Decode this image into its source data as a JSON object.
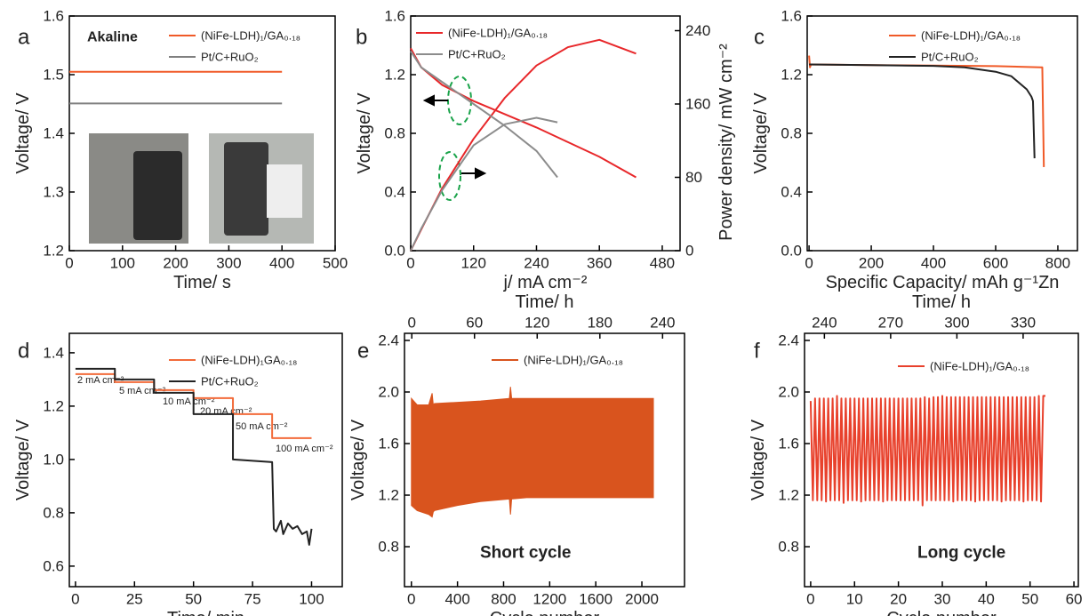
{
  "chart_data": [
    {
      "type": "line",
      "panel_label": "a",
      "xlabel": "Time/ s",
      "ylabel": "Voltage/ V",
      "xlim": [
        0,
        500
      ],
      "xticks": [
        0,
        100,
        200,
        300,
        400,
        500
      ],
      "ylim": [
        1.2,
        1.6
      ],
      "yticks": [
        1.2,
        1.3,
        1.4,
        1.5,
        1.6
      ],
      "annotations": [
        "Akaline"
      ],
      "series": [
        {
          "name": "(NiFe-LDH)₁/GA₀.₁₈",
          "color": "#f05a28",
          "x": [
            0,
            400
          ],
          "values": [
            1.505,
            1.505
          ]
        },
        {
          "name": "Pt/C+RuO₂",
          "color": "#808080",
          "x": [
            0,
            400
          ],
          "values": [
            1.451,
            1.451
          ]
        }
      ]
    },
    {
      "type": "dual",
      "panel_label": "b",
      "xlabel": "j/ mA cm⁻²",
      "ylabel": "Voltage/ V",
      "y2label": "Power density/ mW cm⁻²",
      "xlim": [
        0,
        514
      ],
      "xticks": [
        0,
        120,
        240,
        360,
        480
      ],
      "ylim": [
        0,
        1.6
      ],
      "yticks": [
        {
          "value": 0,
          "label": "0.0"
        },
        0.4,
        0.8,
        1.2,
        1.6
      ],
      "y2lim": [
        0,
        256
      ],
      "y2ticks": [
        0,
        80,
        160,
        240
      ],
      "series": [
        {
          "name": "(NiFe-LDH)₁/GA₀.₁₈",
          "color": "#e8272a",
          "x": [
            0,
            20,
            60,
            120,
            180,
            240,
            300,
            360,
            430
          ],
          "values": [
            1.38,
            1.25,
            1.13,
            1.02,
            0.93,
            0.84,
            0.74,
            0.64,
            0.5
          ],
          "y2_values": [
            0,
            23,
            68,
            122,
            167,
            202,
            222,
            230,
            215
          ]
        },
        {
          "name": "Pt/C+RuO₂",
          "color": "#8c8c8c",
          "x": [
            0,
            20,
            60,
            120,
            180,
            240,
            280
          ],
          "values": [
            1.36,
            1.25,
            1.15,
            1.0,
            0.85,
            0.68,
            0.5
          ],
          "y2_values": [
            0,
            24,
            66,
            115,
            138,
            145,
            140
          ]
        }
      ]
    },
    {
      "type": "line",
      "panel_label": "c",
      "xlabel": "Specific Capacity/ mAh g⁻¹Zn",
      "ylabel": "Voltage/ V",
      "xlim": [
        -6,
        863
      ],
      "xticks": [
        0,
        200,
        400,
        600,
        800
      ],
      "ylim": [
        0,
        1.6
      ],
      "yticks": [
        {
          "value": 0,
          "label": "0.0"
        },
        0.4,
        0.8,
        1.2,
        1.6
      ],
      "series": [
        {
          "name": "(NiFe-LDH)₁/GA₀.₁₈",
          "color": "#f05a28",
          "x": [
            0,
            3,
            6,
            200,
            400,
            600,
            745,
            750,
            755
          ],
          "values": [
            1.33,
            1.25,
            1.27,
            1.265,
            1.262,
            1.258,
            1.25,
            1.25,
            0.57
          ]
        },
        {
          "name": "Pt/C+RuO₂",
          "color": "#222222",
          "x": [
            0,
            200,
            400,
            500,
            600,
            650,
            700,
            715,
            720,
            725
          ],
          "values": [
            1.27,
            1.265,
            1.26,
            1.25,
            1.22,
            1.19,
            1.1,
            1.05,
            1.02,
            0.63
          ]
        }
      ]
    },
    {
      "type": "line",
      "panel_label": "d",
      "xlabel": "Time/ min",
      "ylabel": "Voltage/ V",
      "xlim": [
        -2.6,
        113
      ],
      "xticks": [
        0,
        25,
        50,
        75,
        100
      ],
      "ylim": [
        0.523,
        1.473
      ],
      "yticks": [
        0.6,
        0.8,
        {
          "value": 1,
          "label": "1.0"
        },
        1.2,
        1.4
      ],
      "annotations": [
        "2 mA cm⁻²",
        "5 mA cm⁻²",
        "10 mA cm⁻²",
        "20 mA cm⁻²",
        "50 mA cm⁻²",
        "100 mA cm⁻²"
      ],
      "series": [
        {
          "name": "(NiFe-LDH)₁GA₀.₁₈",
          "color": "#f26b3a",
          "x": [
            0,
            16.7,
            16.7,
            33.3,
            33.3,
            50,
            50,
            66.7,
            66.7,
            83.3,
            83.3,
            100
          ],
          "values": [
            1.32,
            1.32,
            1.29,
            1.29,
            1.26,
            1.26,
            1.23,
            1.23,
            1.17,
            1.17,
            1.08,
            1.08
          ]
        },
        {
          "name": "Pt/C+RuO₂",
          "color": "#222222",
          "x": [
            0,
            16.7,
            16.7,
            33.3,
            33.3,
            50,
            50,
            66.7,
            66.7,
            83.3,
            84,
            85,
            87,
            88,
            90,
            92,
            94,
            96,
            98,
            99,
            100
          ],
          "values": [
            1.34,
            1.34,
            1.3,
            1.3,
            1.25,
            1.25,
            1.17,
            1.17,
            1.0,
            0.99,
            0.74,
            0.73,
            0.77,
            0.72,
            0.76,
            0.74,
            0.75,
            0.72,
            0.73,
            0.68,
            0.74
          ]
        }
      ]
    },
    {
      "type": "band",
      "panel_label": "e",
      "xlabel": "Cycle number",
      "ylabel": "Voltage/ V",
      "x2label": "Time/ h",
      "xlim": [
        -60,
        2370
      ],
      "xticks": [
        0,
        400,
        800,
        1200,
        1600,
        2000
      ],
      "x2lim": [
        -7,
        261
      ],
      "x2ticks": [
        0,
        60,
        120,
        180,
        240
      ],
      "ylim": [
        0.49,
        2.455
      ],
      "yticks": [
        0.8,
        1.2,
        1.6,
        {
          "value": 2,
          "label": "2.0"
        },
        2.4
      ],
      "annotations": [
        "Short cycle"
      ],
      "series": [
        {
          "name": "(NiFe-LDH)₁/GA₀.₁₈",
          "color": "#d9541e",
          "x": [
            0,
            50,
            150,
            180,
            190,
            200,
            400,
            600,
            850,
            860,
            870,
            1000,
            1400,
            1800,
            2100
          ],
          "values": [
            1.95,
            1.9,
            1.9,
            1.99,
            1.9,
            1.91,
            1.92,
            1.93,
            1.95,
            2.04,
            1.95,
            1.95,
            1.95,
            1.95,
            1.95
          ],
          "lower": [
            1.12,
            1.08,
            1.05,
            1.03,
            1.07,
            1.08,
            1.12,
            1.15,
            1.17,
            1.05,
            1.17,
            1.18,
            1.18,
            1.18,
            1.18
          ]
        }
      ]
    },
    {
      "type": "line",
      "panel_label": "f",
      "xlabel": "Cycle number",
      "ylabel": "Voltage/ V",
      "x2label": "Time/ h",
      "xlim": [
        -1.4,
        61
      ],
      "xticks": [
        0,
        10,
        20,
        30,
        40,
        50,
        60
      ],
      "x2lim": [
        231,
        355
      ],
      "x2ticks": [
        240,
        270,
        300,
        330
      ],
      "ylim": [
        0.49,
        2.455
      ],
      "yticks": [
        0.8,
        1.2,
        1.6,
        {
          "value": 2,
          "label": "2.0"
        },
        2.4
      ],
      "annotations": [
        "Long cycle"
      ],
      "series": [
        {
          "name": "(NiFe-LDH)₁/GA₀.₁₈",
          "color": "#e8412c",
          "x": [
            0,
            0.5,
            1,
            1.5,
            2,
            2.5,
            3,
            3.5,
            4,
            4.5,
            5,
            5.5,
            6,
            6.5,
            7,
            7.5,
            8,
            8.5,
            9,
            9.5,
            10,
            10.5,
            11,
            11.5,
            12,
            12.5,
            13,
            13.5,
            14,
            14.5,
            15,
            15.5,
            16,
            16.5,
            17,
            17.5,
            18,
            18.5,
            19,
            19.5,
            20,
            20.5,
            21,
            21.5,
            22,
            22.5,
            23,
            23.5,
            24,
            24.5,
            25,
            25.5,
            26,
            26.5,
            27,
            27.5,
            28,
            28.5,
            29,
            29.5,
            30,
            30.5,
            31,
            31.5,
            32,
            32.5,
            33,
            33.5,
            34,
            34.5,
            35,
            35.5,
            36,
            36.5,
            37,
            37.5,
            38,
            38.5,
            39,
            39.5,
            40,
            40.5,
            41,
            41.5,
            42,
            42.5,
            43,
            43.5,
            44,
            44.5,
            45,
            45.5,
            46,
            46.5,
            47,
            47.5,
            48,
            48.5,
            49,
            49.5,
            50,
            50.5,
            51,
            51.5,
            52,
            52.5,
            53,
            53.5
          ],
          "values": [
            1.93,
            1.16,
            1.95,
            1.16,
            1.95,
            1.16,
            1.95,
            1.15,
            1.95,
            1.16,
            1.95,
            1.16,
            1.97,
            1.16,
            1.95,
            1.14,
            1.95,
            1.16,
            1.95,
            1.16,
            1.95,
            1.16,
            1.95,
            1.15,
            1.95,
            1.16,
            1.95,
            1.16,
            1.95,
            1.16,
            1.95,
            1.16,
            1.95,
            1.15,
            1.95,
            1.16,
            1.95,
            1.16,
            1.95,
            1.16,
            1.95,
            1.16,
            1.95,
            1.16,
            1.95,
            1.16,
            1.95,
            1.16,
            1.95,
            1.16,
            1.95,
            1.12,
            1.96,
            1.16,
            1.95,
            1.16,
            1.96,
            1.16,
            1.96,
            1.16,
            1.97,
            1.16,
            1.96,
            1.16,
            1.96,
            1.15,
            1.96,
            1.16,
            1.96,
            1.16,
            1.96,
            1.16,
            1.96,
            1.16,
            1.96,
            1.15,
            1.96,
            1.16,
            1.96,
            1.16,
            1.96,
            1.16,
            1.96,
            1.16,
            1.96,
            1.16,
            1.96,
            1.15,
            1.96,
            1.16,
            1.96,
            1.16,
            1.96,
            1.16,
            1.96,
            1.16,
            1.96,
            1.15,
            1.96,
            1.16,
            1.96,
            1.16,
            1.96,
            1.16,
            1.97,
            1.15,
            1.97,
            1.97
          ]
        }
      ]
    }
  ]
}
